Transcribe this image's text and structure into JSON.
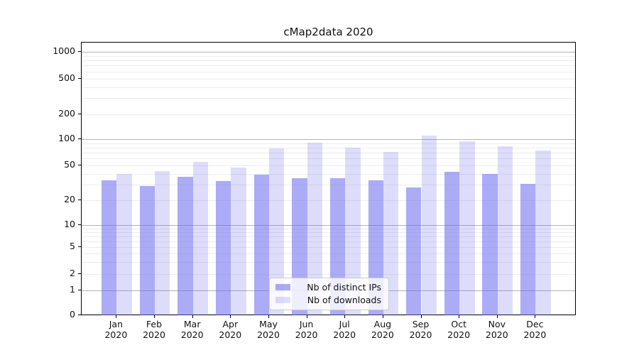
{
  "chart_data": {
    "type": "bar",
    "title": "cMap2data 2020",
    "categories": [
      "Jan",
      "Feb",
      "Mar",
      "Apr",
      "May",
      "Jun",
      "Jul",
      "Aug",
      "Sep",
      "Oct",
      "Nov",
      "Dec"
    ],
    "category_year": "2020",
    "series": [
      {
        "name": "Nb of distinct IPs",
        "color": "#6666ee",
        "opacity": 0.55,
        "values": [
          34,
          29,
          37,
          33,
          39,
          36,
          36,
          34,
          28,
          42,
          40,
          31
        ]
      },
      {
        "name": "Nb of downloads",
        "color": "#6666ee",
        "opacity": 0.22,
        "values": [
          40,
          43,
          55,
          47,
          79,
          91,
          80,
          72,
          111,
          95,
          83,
          74
        ]
      }
    ],
    "xlabel": "",
    "ylabel": "",
    "yscale": "symlog",
    "ytick_labels": [
      "0",
      "1",
      "2",
      "5",
      "10",
      "20",
      "50",
      "100",
      "200",
      "500",
      "1000"
    ],
    "yticks": [
      0,
      1,
      2,
      5,
      10,
      20,
      50,
      100,
      200,
      500,
      1000
    ],
    "ylim": [
      0,
      1285
    ],
    "grid": true,
    "legend_position": "lower center",
    "grid_major_color": "#b3b3b3",
    "grid_minor_color": "#ececec",
    "axis_color": "#000000"
  }
}
